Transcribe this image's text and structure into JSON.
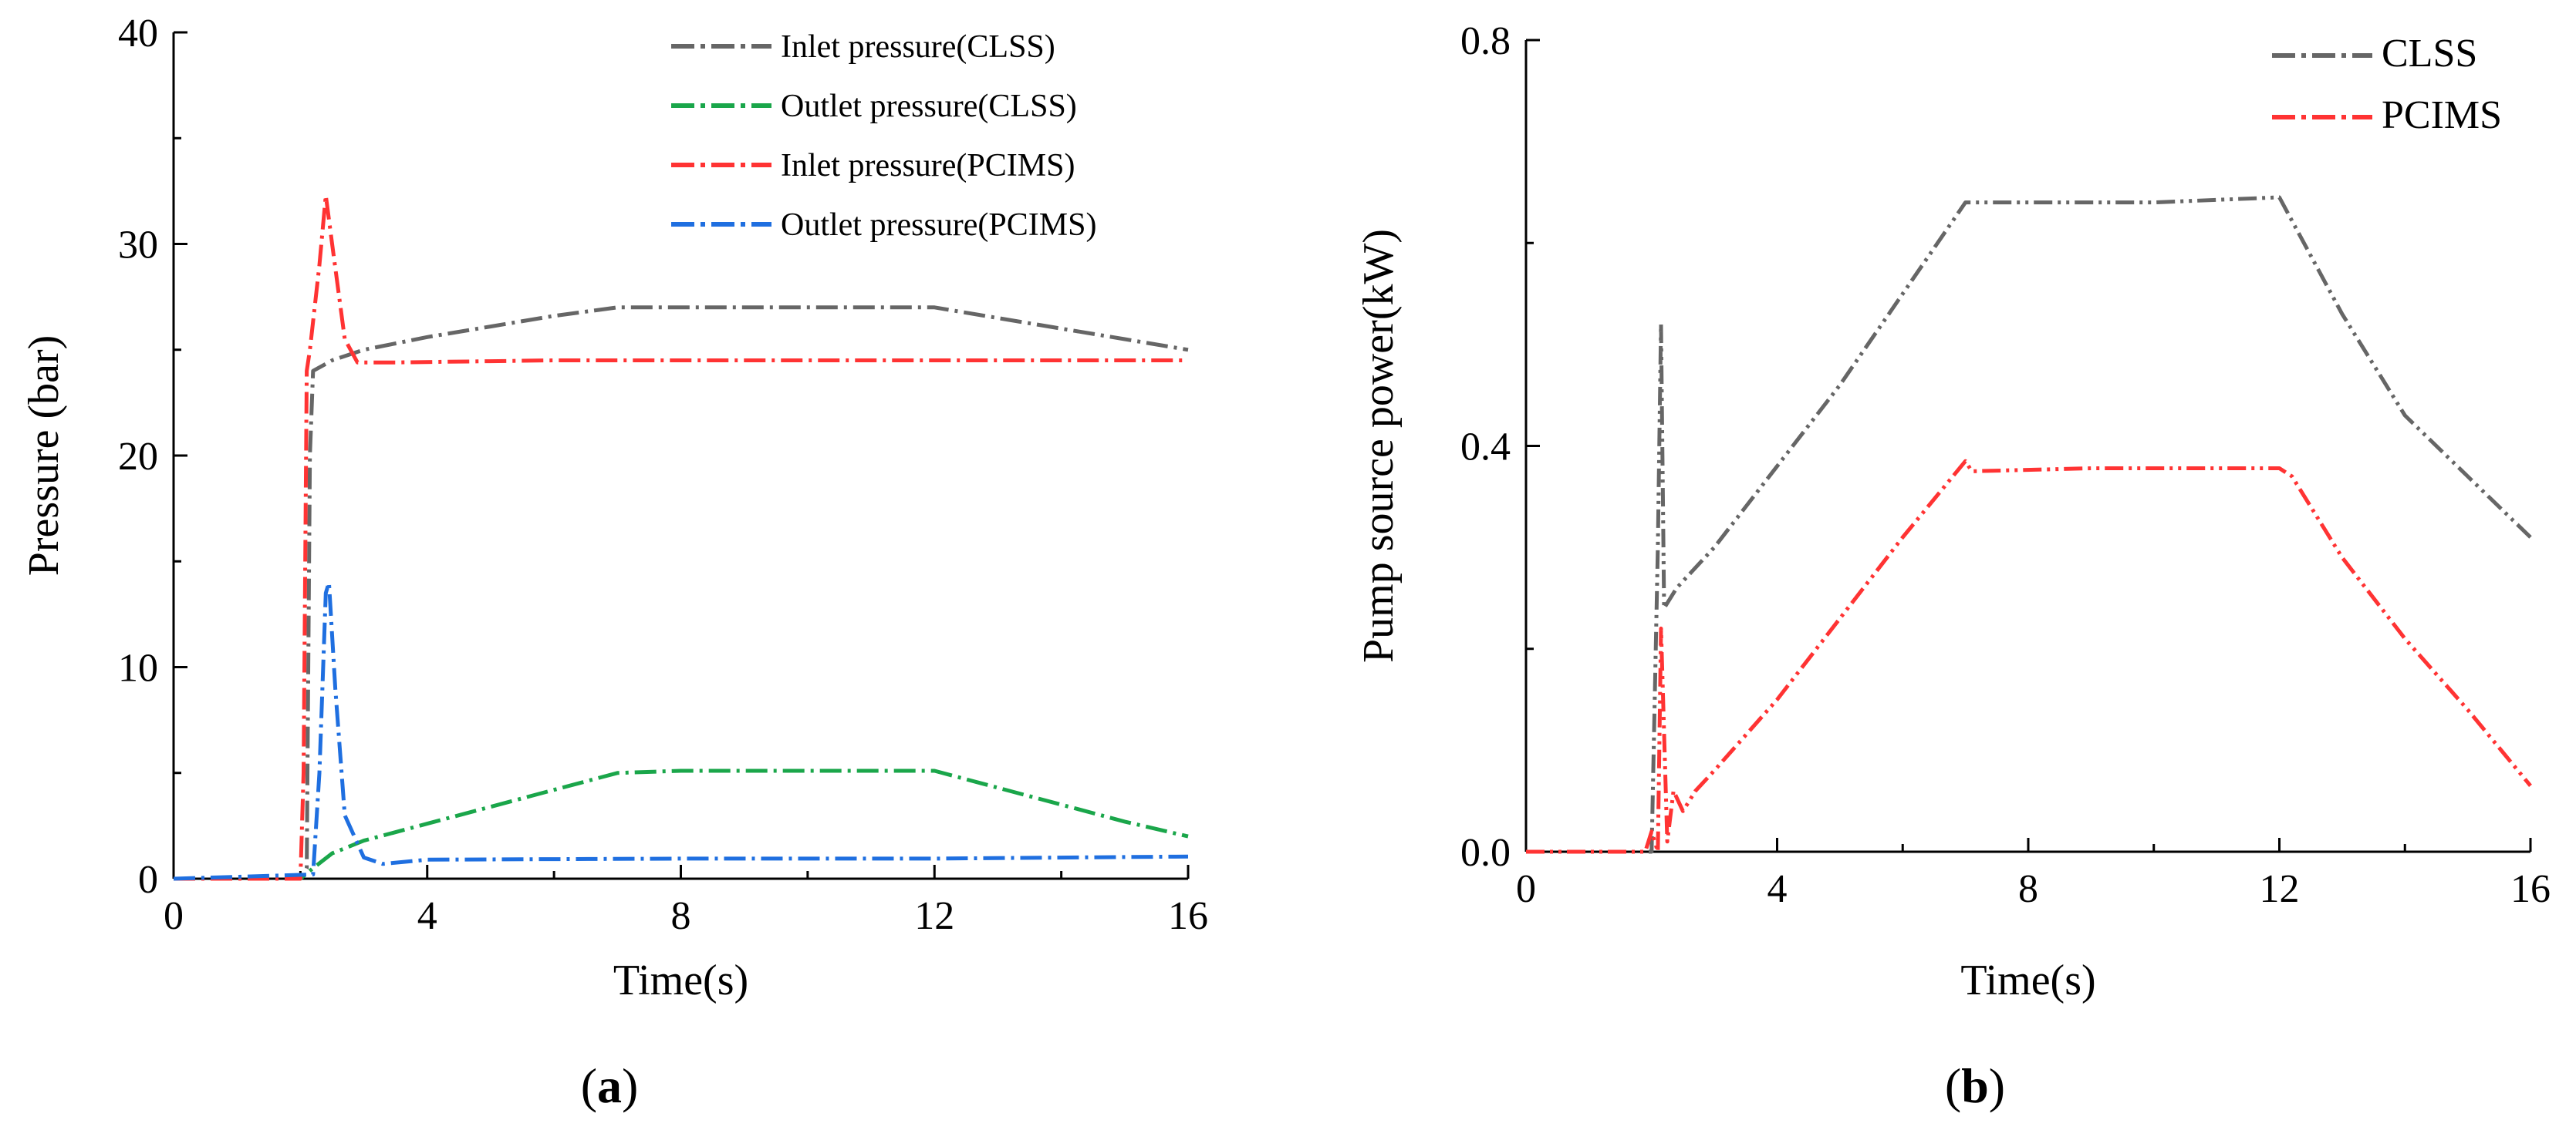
{
  "chart_data": [
    {
      "panel": "(a)",
      "type": "line",
      "title": "",
      "xlabel": "Time(s)",
      "ylabel": "Pressure (bar)",
      "xlim": [
        0,
        16
      ],
      "ylim": [
        0,
        40
      ],
      "xticks": [
        0,
        4,
        8,
        12,
        16
      ],
      "yticks": [
        0,
        10,
        20,
        30,
        40
      ],
      "xtick_labels": [
        "0",
        "4",
        "8",
        "12",
        "16"
      ],
      "ytick_labels": [
        "0",
        "10",
        "20",
        "30",
        "40"
      ],
      "legend_position": "top-right",
      "series": [
        {
          "name": "Inlet pressure(CLSS)",
          "color": "#666666",
          "points": [
            [
              0,
              0
            ],
            [
              2.0,
              0
            ],
            [
              2.1,
              0.5
            ],
            [
              2.15,
              20
            ],
            [
              2.2,
              24
            ],
            [
              2.5,
              24.5
            ],
            [
              3,
              25
            ],
            [
              4,
              25.6
            ],
            [
              5,
              26.1
            ],
            [
              6,
              26.6
            ],
            [
              7,
              27
            ],
            [
              8,
              27
            ],
            [
              10,
              27
            ],
            [
              12,
              27
            ],
            [
              13,
              26.5
            ],
            [
              14,
              26
            ],
            [
              15,
              25.5
            ],
            [
              16,
              25
            ]
          ]
        },
        {
          "name": "Outlet pressure(CLSS)",
          "color": "#1aa64a",
          "points": [
            [
              0,
              0
            ],
            [
              2.0,
              0
            ],
            [
              2.2,
              0.5
            ],
            [
              2.5,
              1.2
            ],
            [
              3,
              1.8
            ],
            [
              4,
              2.6
            ],
            [
              5,
              3.4
            ],
            [
              6,
              4.2
            ],
            [
              7,
              5
            ],
            [
              8,
              5.1
            ],
            [
              10,
              5.1
            ],
            [
              12,
              5.1
            ],
            [
              13,
              4.3
            ],
            [
              14,
              3.5
            ],
            [
              15,
              2.7
            ],
            [
              16,
              2
            ]
          ]
        },
        {
          "name": "Inlet pressure(PCIMS)",
          "color": "#ff3333",
          "points": [
            [
              0,
              0
            ],
            [
              2.0,
              0
            ],
            [
              2.05,
              5
            ],
            [
              2.1,
              24
            ],
            [
              2.15,
              25
            ],
            [
              2.3,
              29
            ],
            [
              2.4,
              32.3
            ],
            [
              2.5,
              30
            ],
            [
              2.7,
              25.5
            ],
            [
              2.9,
              24.4
            ],
            [
              3.5,
              24.4
            ],
            [
              6,
              24.5
            ],
            [
              9,
              24.5
            ],
            [
              12,
              24.5
            ],
            [
              14,
              24.5
            ],
            [
              16,
              24.5
            ]
          ]
        },
        {
          "name": "Outlet pressure(PCIMS)",
          "color": "#1f6fe0",
          "points": [
            [
              0,
              0
            ],
            [
              2.2,
              0.2
            ],
            [
              2.3,
              5
            ],
            [
              2.4,
              13.5
            ],
            [
              2.45,
              14
            ],
            [
              2.55,
              9
            ],
            [
              2.7,
              3
            ],
            [
              3,
              1
            ],
            [
              3.3,
              0.7
            ],
            [
              4,
              0.9
            ],
            [
              8,
              0.95
            ],
            [
              12,
              0.95
            ],
            [
              16,
              1.05
            ]
          ]
        }
      ]
    },
    {
      "panel": "(b)",
      "type": "line",
      "title": "",
      "xlabel": "Time(s)",
      "ylabel": "Pump source power(kW)",
      "xlim": [
        0,
        16
      ],
      "ylim": [
        0,
        0.8
      ],
      "xticks": [
        0,
        4,
        8,
        12,
        16
      ],
      "yticks": [
        0,
        0.4,
        0.8
      ],
      "xtick_labels": [
        "0",
        "4",
        "8",
        "12",
        "16"
      ],
      "ytick_labels": [
        "0.0",
        "0.4",
        "0.8"
      ],
      "legend_position": "top-right",
      "series": [
        {
          "name": "CLSS",
          "color": "#666666",
          "points": [
            [
              0,
              0
            ],
            [
              2.0,
              0
            ],
            [
              2.1,
              0.3
            ],
            [
              2.15,
              0.52
            ],
            [
              2.2,
              0.24
            ],
            [
              2.4,
              0.26
            ],
            [
              3,
              0.3
            ],
            [
              4,
              0.38
            ],
            [
              5,
              0.46
            ],
            [
              6,
              0.55
            ],
            [
              7,
              0.64
            ],
            [
              8,
              0.64
            ],
            [
              10,
              0.64
            ],
            [
              12,
              0.645
            ],
            [
              13,
              0.53
            ],
            [
              14,
              0.43
            ],
            [
              15,
              0.37
            ],
            [
              16,
              0.31
            ]
          ]
        },
        {
          "name": "PCIMS",
          "color": "#ff3333",
          "points": [
            [
              0,
              0
            ],
            [
              1.9,
              0
            ],
            [
              2.0,
              0.02
            ],
            [
              2.1,
              0.0
            ],
            [
              2.15,
              0.22
            ],
            [
              2.25,
              0.01
            ],
            [
              2.35,
              0.06
            ],
            [
              2.5,
              0.04
            ],
            [
              2.7,
              0.06
            ],
            [
              3,
              0.08
            ],
            [
              4,
              0.15
            ],
            [
              5,
              0.23
            ],
            [
              6,
              0.31
            ],
            [
              7,
              0.385
            ],
            [
              7.1,
              0.375
            ],
            [
              9,
              0.378
            ],
            [
              12,
              0.378
            ],
            [
              12.2,
              0.37
            ],
            [
              13,
              0.29
            ],
            [
              14,
              0.21
            ],
            [
              15,
              0.14
            ],
            [
              16,
              0.065
            ]
          ]
        }
      ]
    }
  ]
}
